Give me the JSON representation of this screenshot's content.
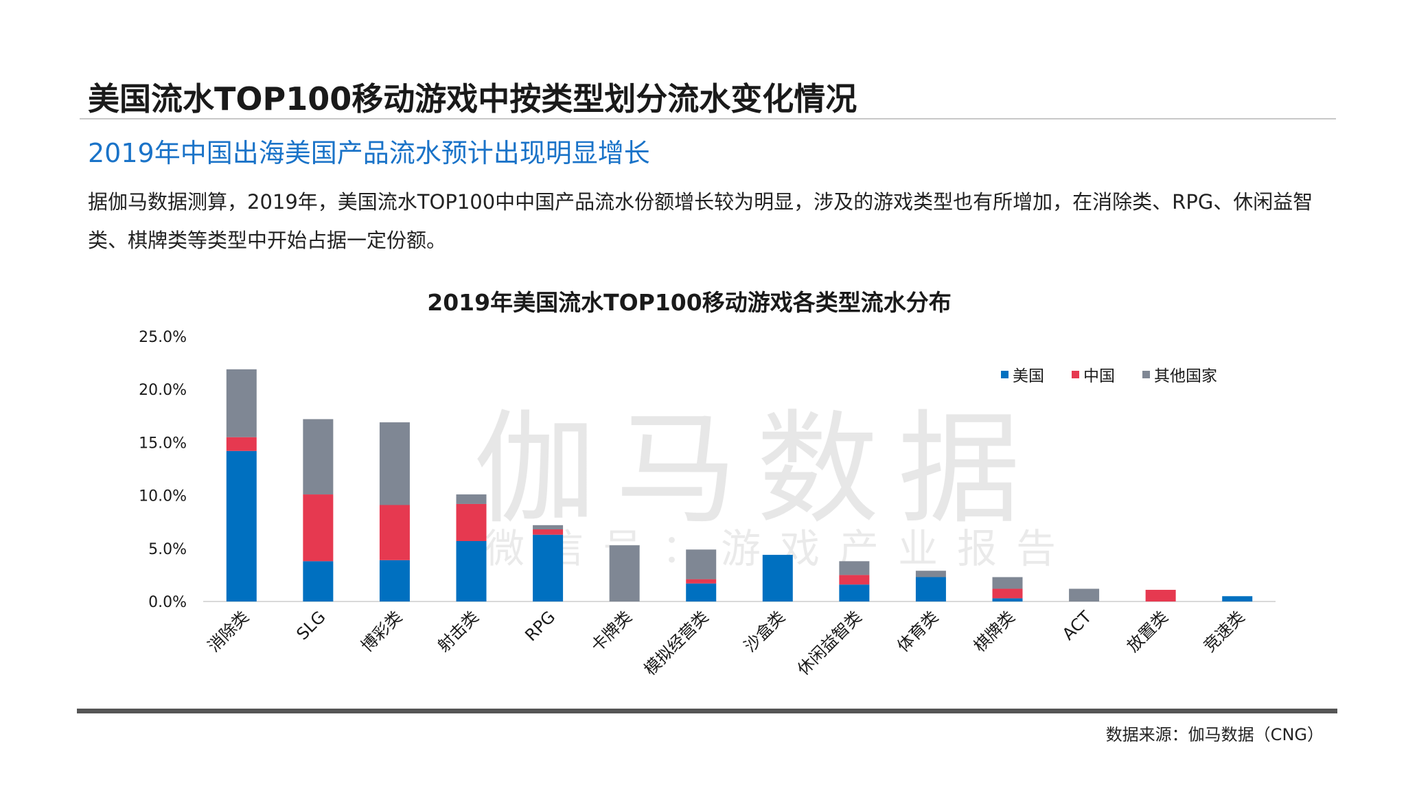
{
  "header": {
    "title": "美国流水TOP100移动游戏中按类型划分流水变化情况",
    "subtitle": "2019年中国出海美国产品流水预计出现明显增长",
    "body": "据伽马数据测算，2019年，美国流水TOP100中中国产品流水份额增长较为明显，涉及的游戏类型也有所增加，在消除类、RPG、休闲益智类、棋牌类等类型中开始占据一定份额。"
  },
  "watermark": {
    "main": "伽马数据",
    "sub": "微信号：游戏产业报告"
  },
  "footer": {
    "source": "数据来源：伽马数据（CNG）"
  },
  "colors": {
    "us": "#0070C0",
    "china": "#E63950",
    "other": "#7F8794"
  },
  "chart_data": {
    "type": "bar",
    "stacked": true,
    "title": "2019年美国流水TOP100移动游戏各类型流水分布",
    "xlabel": "",
    "ylabel": "",
    "ylim": [
      0,
      25
    ],
    "yticks": [
      "0.0%",
      "5.0%",
      "10.0%",
      "15.0%",
      "20.0%",
      "25.0%"
    ],
    "grid": false,
    "legend_position": "top-right",
    "categories": [
      "消除类",
      "SLG",
      "博彩类",
      "射击类",
      "RPG",
      "卡牌类",
      "模拟经营类",
      "沙盒类",
      "休闲益智类",
      "体育类",
      "棋牌类",
      "ACT",
      "放置类",
      "竞速类"
    ],
    "series": [
      {
        "name": "美国",
        "color": "#0070C0",
        "values": [
          14.2,
          3.8,
          3.9,
          5.7,
          6.3,
          0,
          1.7,
          4.4,
          1.6,
          2.3,
          0.3,
          0,
          0,
          0.5
        ]
      },
      {
        "name": "中国",
        "color": "#E63950",
        "values": [
          1.3,
          6.3,
          5.2,
          3.5,
          0.5,
          0,
          0.4,
          0,
          0.9,
          0,
          0.9,
          0,
          1.1,
          0
        ]
      },
      {
        "name": "其他国家",
        "color": "#7F8794",
        "values": [
          6.4,
          7.1,
          7.8,
          0.9,
          0.4,
          5.3,
          2.8,
          0,
          1.3,
          0.6,
          1.1,
          1.2,
          0,
          0
        ]
      }
    ]
  }
}
